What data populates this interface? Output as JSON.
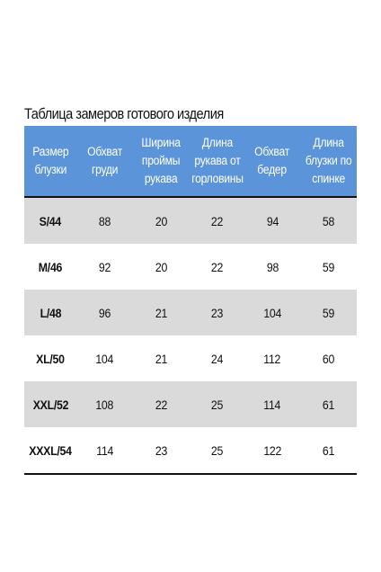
{
  "title": "Таблица замеров готового изделия",
  "colors": {
    "header_bg": "#5b94d8",
    "header_text": "#ffffff",
    "row_shade": "#dadada",
    "rule": "#111111"
  },
  "table": {
    "headers": [
      [
        "Размер",
        "блузки"
      ],
      [
        "Обхват",
        "груди"
      ],
      [
        "Ширина",
        "проймы",
        "рукава"
      ],
      [
        "Длина",
        "рукава от",
        "горловины"
      ],
      [
        "Обхват",
        "бедер"
      ],
      [
        "Длина",
        "блузки по",
        "спинке"
      ]
    ],
    "rows": [
      [
        "S/44",
        "88",
        "20",
        "22",
        "94",
        "58"
      ],
      [
        "M/46",
        "92",
        "20",
        "22",
        "98",
        "59"
      ],
      [
        "L/48",
        "96",
        "21",
        "23",
        "104",
        "59"
      ],
      [
        "XL/50",
        "104",
        "21",
        "24",
        "112",
        "60"
      ],
      [
        "XXL/52",
        "108",
        "22",
        "25",
        "114",
        "61"
      ],
      [
        "XXXL/54",
        "114",
        "23",
        "25",
        "122",
        "61"
      ]
    ]
  }
}
